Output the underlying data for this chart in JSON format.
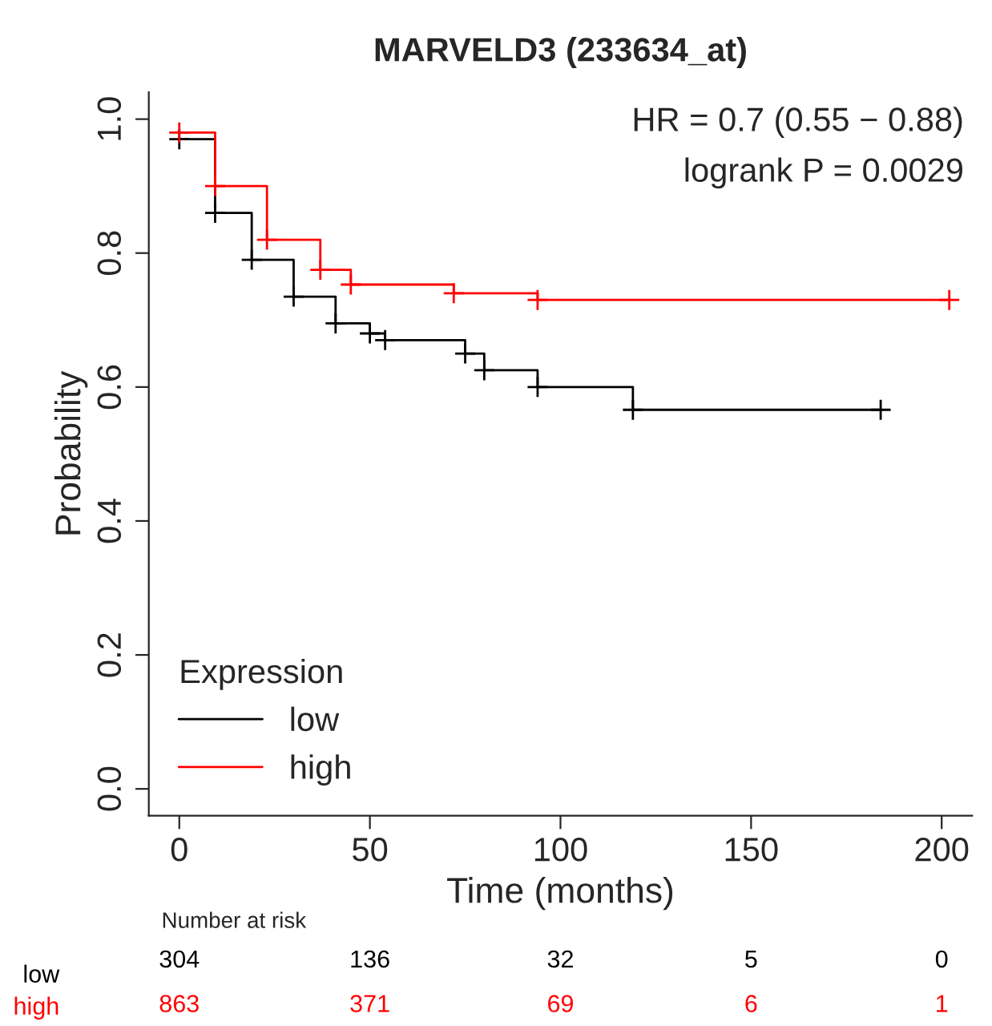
{
  "chart_data": {
    "type": "step",
    "title": "MARVELD3 (233634_at)",
    "xlabel": "Time (months)",
    "ylabel": "Probability",
    "xlim": [
      -8,
      208
    ],
    "ylim": [
      -0.04,
      1.04
    ],
    "xticks": [
      0,
      50,
      100,
      150,
      200
    ],
    "yticks": [
      {
        "value": 0,
        "label": "0.0"
      },
      0.2,
      0.4,
      0.6,
      0.8,
      {
        "value": 1,
        "label": "1.0"
      }
    ],
    "grid": false,
    "legend": "bottom left",
    "legend_title": "Expression",
    "marker": "cross",
    "line_style": "solid",
    "series": [
      {
        "name": "low",
        "color": "#000000",
        "x": [
          0,
          9.4,
          19,
          30,
          41,
          50,
          54,
          75,
          80,
          94,
          119,
          184
        ],
        "values": [
          0.97,
          0.86,
          0.79,
          0.735,
          0.695,
          0.68,
          0.67,
          0.65,
          0.625,
          0.6,
          0.566,
          0.566
        ]
      },
      {
        "name": "high",
        "color": "#ff0000",
        "x": [
          0,
          9.4,
          23,
          37,
          45,
          72,
          94,
          202
        ],
        "values": [
          0.98,
          0.9,
          0.82,
          0.775,
          0.753,
          0.74,
          0.73,
          0.73
        ]
      }
    ],
    "annotations": [
      "HR = 0.7 (0.55 − 0.88)",
      "logrank P = 0.0029",
      "Number at risk",
      "low",
      "304",
      "136",
      "32",
      "5",
      "0",
      "high",
      "863",
      "371",
      "69",
      "6",
      "1"
    ]
  }
}
